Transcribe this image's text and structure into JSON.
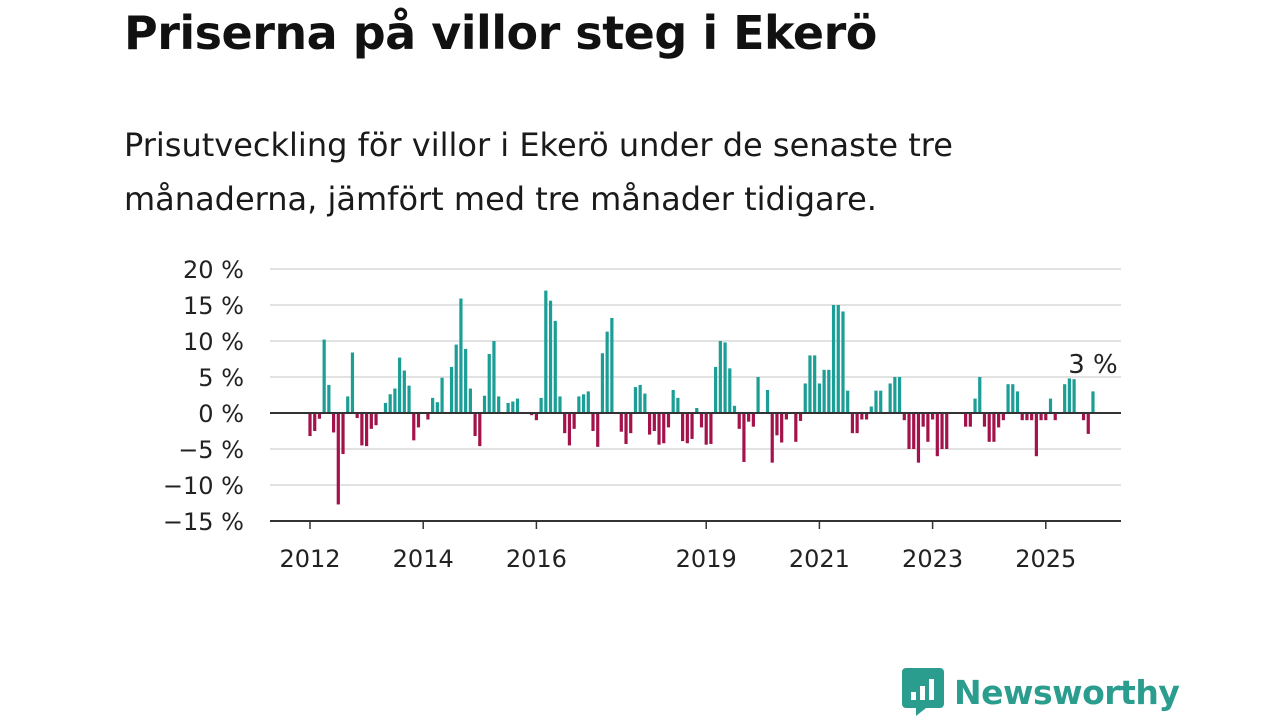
{
  "title": "Priserna på villor steg i Ekerö",
  "subtitle": "Prisutveckling för villor i Ekerö under de senaste tre månaderna, jämfört med tre månader tidigare.",
  "brand": "Newsworthy",
  "colors": {
    "positive": "#1a9e96",
    "negative": "#a3124a",
    "grid": "#d9d9d9",
    "axis": "#333333",
    "brand": "#2a9d8f"
  },
  "chart_data": {
    "type": "bar",
    "title": "Priserna på villor steg i Ekerö",
    "subtitle": "Prisutveckling för villor i Ekerö under de senaste tre månaderna, jämfört med tre månader tidigare.",
    "x_start": "2012-01",
    "x_end": "2025-08",
    "frequency": "monthly",
    "ylim": [
      -15,
      20
    ],
    "y_ticks": [
      20,
      15,
      10,
      5,
      0,
      -5,
      -10,
      -15
    ],
    "y_tick_labels": [
      "20 %",
      "15 %",
      "10 %",
      "5 %",
      "0 %",
      "−5 %",
      "−10 %",
      "−15 %"
    ],
    "x_tick_years": [
      2012,
      2014,
      2016,
      2019,
      2021,
      2023,
      2025
    ],
    "grid": true,
    "annotation": {
      "text": "3 %",
      "at": "last"
    },
    "values": [
      -3.2,
      -2.5,
      -0.8,
      10.2,
      3.9,
      -2.7,
      -12.7,
      -5.7,
      2.3,
      8.4,
      -0.7,
      -4.5,
      -4.6,
      -2.2,
      -1.7,
      0.0,
      1.4,
      2.6,
      3.4,
      7.7,
      5.9,
      3.8,
      -3.8,
      -2.0,
      0.0,
      -0.9,
      2.1,
      1.5,
      4.9,
      0.0,
      6.4,
      9.5,
      15.9,
      8.9,
      3.4,
      -3.2,
      -4.6,
      2.4,
      8.2,
      10.0,
      2.3,
      0.0,
      1.4,
      1.6,
      2.0,
      0.0,
      0.0,
      -0.3,
      -1.0,
      2.1,
      17.0,
      15.6,
      12.8,
      2.3,
      -2.8,
      -4.5,
      -2.2,
      2.3,
      2.6,
      3.0,
      -2.5,
      -4.7,
      8.3,
      11.3,
      13.2,
      0.0,
      -2.6,
      -4.3,
      -2.8,
      3.6,
      3.9,
      2.7,
      -3.0,
      -2.5,
      -4.4,
      -4.2,
      -2.0,
      3.2,
      2.1,
      -3.9,
      -4.2,
      -3.6,
      0.7,
      -2.0,
      -4.4,
      -4.3,
      6.4,
      10.0,
      9.8,
      6.2,
      1.0,
      -2.2,
      -6.8,
      -1.2,
      -1.9,
      5.0,
      0.0,
      3.2,
      -6.9,
      -3.1,
      -4.1,
      -0.9,
      0.0,
      -4.0,
      -1.1,
      4.1,
      8.0,
      8.0,
      4.1,
      6.0,
      6.0,
      15.0,
      15.0,
      14.1,
      3.1,
      -2.8,
      -2.8,
      -0.9,
      -0.9,
      0.9,
      3.1,
      3.1,
      0.0,
      4.1,
      5.0,
      5.0,
      -1.0,
      -5.0,
      -5.0,
      -6.9,
      -1.9,
      -4.0,
      -0.9,
      -6.0,
      -5.0,
      -5.0,
      0.0,
      0.0,
      0.0,
      -1.9,
      -1.9,
      2.0,
      5.0,
      -1.9,
      -4.0,
      -4.0,
      -2.0,
      -1.0,
      4.0,
      4.0,
      3.0,
      -1.0,
      -1.0,
      -1.0,
      -6.0,
      -1.0,
      -1.0,
      2.0,
      -1.0,
      0.0,
      4.0,
      4.8,
      4.7,
      0.0,
      -1.0,
      -2.9,
      3.0
    ]
  }
}
